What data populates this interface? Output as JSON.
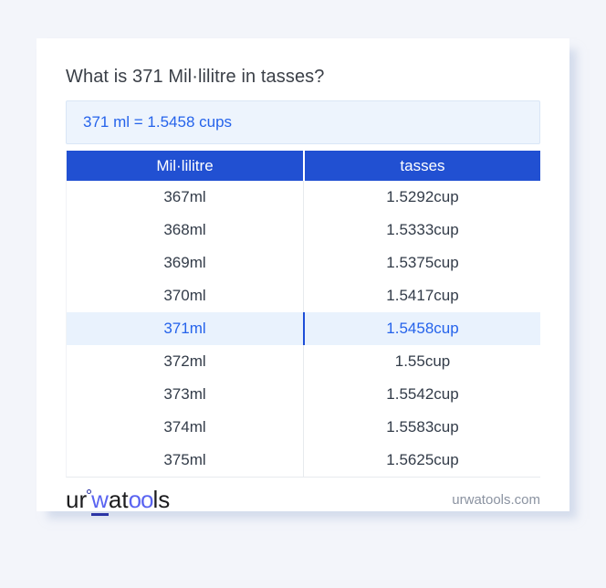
{
  "page": {
    "title": "What is 371 Mil·lilitre in tasses?",
    "result_text": "371 ml = 1.5458 cups"
  },
  "table": {
    "headers": [
      "Mil·lilitre",
      "tasses"
    ],
    "rows": [
      {
        "ml": "367ml",
        "cup": "1.5292cup",
        "highlighted": false
      },
      {
        "ml": "368ml",
        "cup": "1.5333cup",
        "highlighted": false
      },
      {
        "ml": "369ml",
        "cup": "1.5375cup",
        "highlighted": false
      },
      {
        "ml": "370ml",
        "cup": "1.5417cup",
        "highlighted": false
      },
      {
        "ml": "371ml",
        "cup": "1.5458cup",
        "highlighted": true
      },
      {
        "ml": "372ml",
        "cup": "1.55cup",
        "highlighted": false
      },
      {
        "ml": "373ml",
        "cup": "1.5542cup",
        "highlighted": false
      },
      {
        "ml": "374ml",
        "cup": "1.5583cup",
        "highlighted": false
      },
      {
        "ml": "375ml",
        "cup": "1.5625cup",
        "highlighted": false
      }
    ]
  },
  "footer": {
    "logo": {
      "p1": "ur",
      "p2": "w",
      "p3": "at",
      "p4": "oo",
      "p5": "ls"
    },
    "site": "urwatools.com"
  },
  "colors": {
    "bg": "#f3f5fa",
    "headerBlue": "#2150d2",
    "linkBlue": "#2563eb",
    "resultBg": "#edf4fd",
    "resultBorder": "#d9e6f6",
    "hlBg": "#e9f2fd",
    "hlDivider": "#1d4ed8",
    "rowText": "#333c49",
    "titleText": "#3a3f47",
    "mutedText": "#8b93a1",
    "logoBlue": "#5a64f1",
    "logoDark": "#1d1d1f",
    "logoAccent": "#2c35a5"
  }
}
